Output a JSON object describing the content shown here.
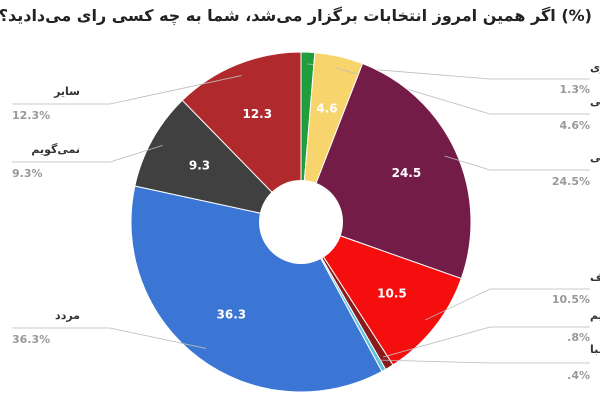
{
  "chart_data": {
    "type": "pie",
    "title": "(%) اگر همین امروز انتخابات برگزار می‌شد، شما به چه کسی رای می‌دادید؟",
    "categories": [
      "جهانگیری",
      "رئیسی",
      "روحانی",
      "قالیباف",
      "میرسلیم",
      "هاشمی‌طبا",
      "مردد",
      "نمی‌گویم",
      "سایر"
    ],
    "values": [
      1.3,
      4.6,
      24.5,
      10.5,
      0.8,
      0.4,
      36.3,
      9.3,
      12.3
    ],
    "value_labels": [
      "1.3%",
      "4.6%",
      "24.5%",
      "10.5%",
      ".8%",
      ".4%",
      "36.3%",
      "9.3%",
      "12.3%"
    ],
    "colors": [
      "#1f9e3b",
      "#f8d56c",
      "#731c47",
      "#f50e0e",
      "#8a1b1b",
      "#5bc0de",
      "#3b76d5",
      "#404040",
      "#b02a2d"
    ]
  }
}
